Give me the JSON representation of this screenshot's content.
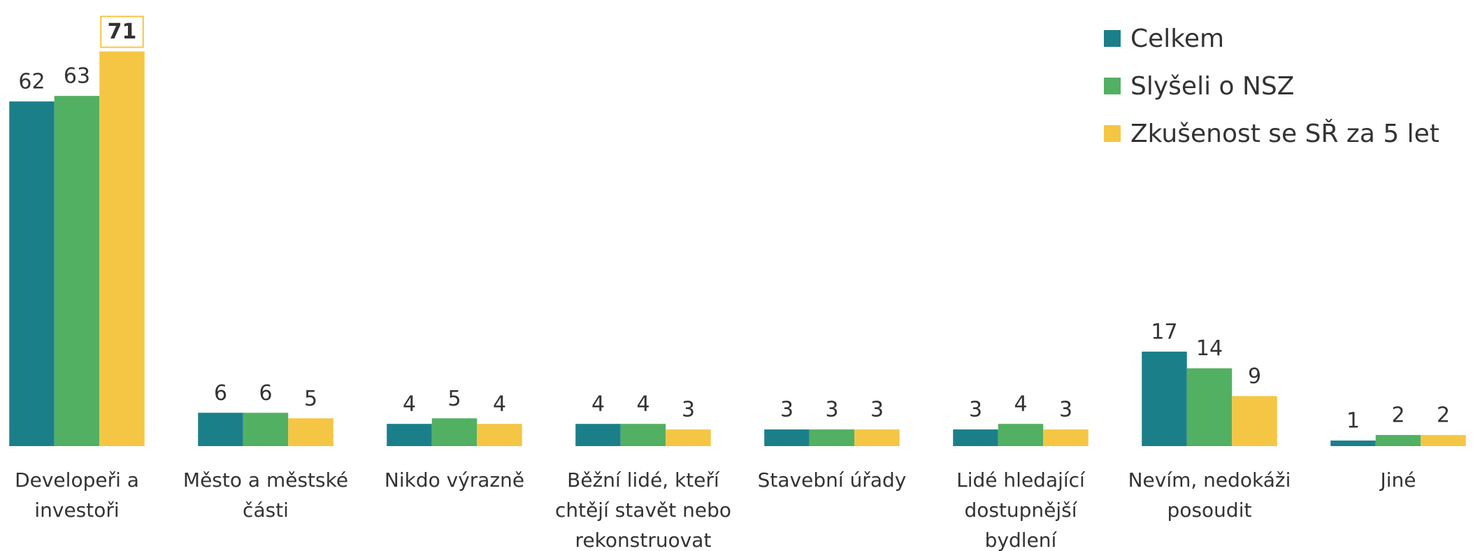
{
  "chart_data": {
    "type": "bar",
    "categories": [
      "Developeři a\ninvestoři",
      "Město a městské\nčásti",
      "Nikdo výrazně",
      "Běžní lidé, kteří\nchtějí stavět nebo\nrekonstruovat",
      "Stavební úřady",
      "Lidé hledající\ndostupnější\nbydlení",
      "Nevím, nedokáži\nposoudit",
      "Jiné"
    ],
    "series": [
      {
        "name": "Celkem",
        "color": "#1b7f8a",
        "values": [
          62,
          6,
          4,
          4,
          3,
          3,
          17,
          1
        ]
      },
      {
        "name": "Slyšeli o NSZ",
        "color": "#52b062",
        "values": [
          63,
          6,
          5,
          4,
          3,
          4,
          14,
          2
        ]
      },
      {
        "name": "Zkušenost se SŘ za 5 let",
        "color": "#f5c644",
        "values": [
          71,
          5,
          4,
          3,
          3,
          3,
          9,
          2
        ]
      }
    ],
    "highlight": {
      "series": 2,
      "index": 0
    },
    "legend": "top-right"
  }
}
